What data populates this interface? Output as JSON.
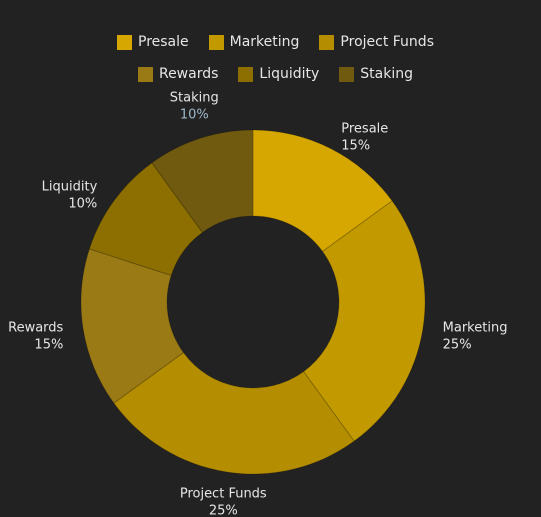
{
  "chart_data": {
    "type": "pie",
    "variant": "donut",
    "title": "",
    "legend_placement": "top",
    "categories": [
      "Presale",
      "Marketing",
      "Project Funds",
      "Rewards",
      "Liquidity",
      "Staking"
    ],
    "values": [
      15,
      25,
      25,
      15,
      10,
      10
    ],
    "value_labels": [
      "15%",
      "25%",
      "25%",
      "15%",
      "10%",
      "10%"
    ],
    "colors": [
      "#D6A700",
      "#C29A00",
      "#B48E00",
      "#9A7A15",
      "#8C6F00",
      "#705A10"
    ],
    "highlight_label_color": "#9fb8c9",
    "highlighted_value_label_index": 5
  },
  "legend": {
    "row1": [
      {
        "label": "Presale",
        "color": "#D6A700"
      },
      {
        "label": "Marketing",
        "color": "#C29A00"
      },
      {
        "label": "Project Funds",
        "color": "#B48E00"
      }
    ],
    "row2": [
      {
        "label": "Rewards",
        "color": "#9A7A15"
      },
      {
        "label": "Liquidity",
        "color": "#8C6F00"
      },
      {
        "label": "Staking",
        "color": "#705A10"
      }
    ]
  }
}
